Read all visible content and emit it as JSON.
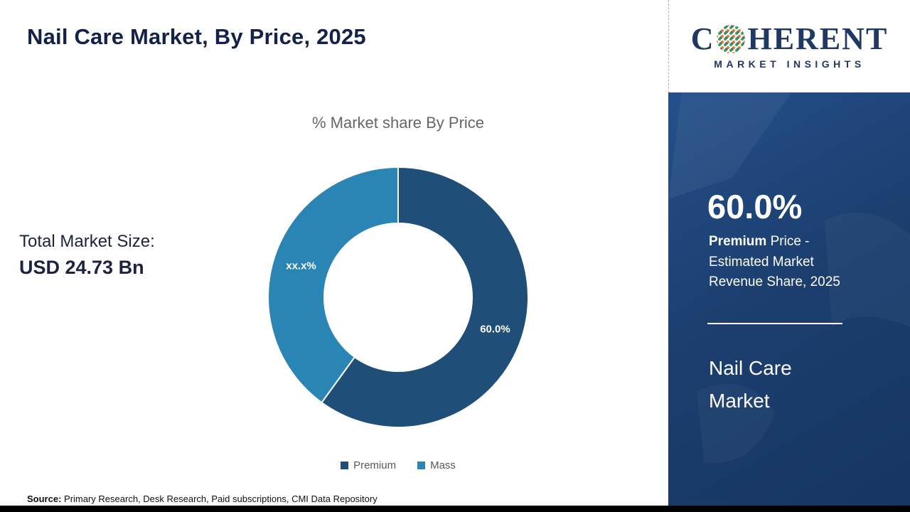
{
  "header": {
    "title": "Nail Care Market, By Price, 2025"
  },
  "chart": {
    "title": "% Market share By Price"
  },
  "chart_data": {
    "type": "pie",
    "donut": true,
    "title": "% Market share By Price",
    "start_angle_deg": 0,
    "direction": "clockwise",
    "legend_position": "bottom",
    "slices": [
      {
        "name": "Premium",
        "value": 60.0,
        "label": "60.0%",
        "color": "#1f4e79"
      },
      {
        "name": "Mass",
        "value": 40.0,
        "label": "xx.x%",
        "color": "#2a85b5"
      }
    ]
  },
  "total": {
    "label": "Total Market Size:",
    "value": "USD 24.73 Bn"
  },
  "logo": {
    "word_prefix": "C",
    "word_suffix": "HERENT",
    "subtitle": "MARKET INSIGHTS",
    "brand_color": "#1f3864"
  },
  "sidebar": {
    "stat_value": "60.0%",
    "stat_desc_bold": "Premium",
    "stat_desc_rest": " Price - Estimated Market Revenue Share, 2025",
    "market_name": "Nail Care Market"
  },
  "source": {
    "label": "Source:",
    "text": " Primary Research, Desk Research, Paid subscriptions, CMI Data Repository"
  }
}
